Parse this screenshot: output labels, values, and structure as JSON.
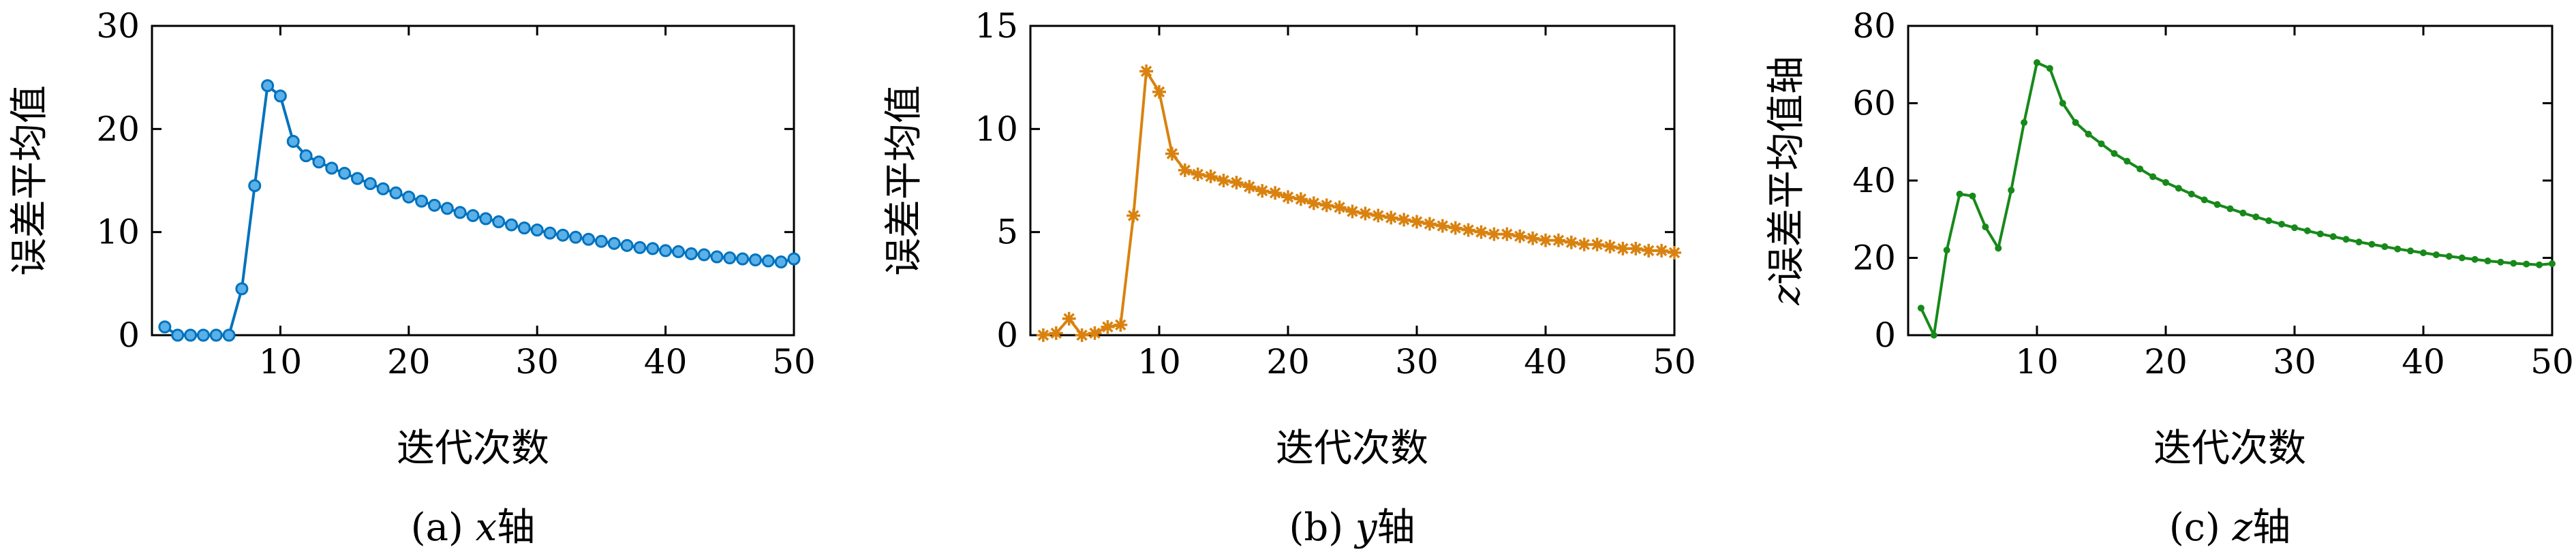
{
  "chart_data": [
    {
      "type": "line",
      "panel": "a",
      "caption": "(a) x轴",
      "caption_parts": {
        "prefix": "(a) ",
        "var": "x",
        "suffix": "轴"
      },
      "xlabel": "迭代次数",
      "ylabel": "误差平均值",
      "xlim": [
        0,
        50
      ],
      "ylim": [
        0,
        30
      ],
      "xticks": [
        10,
        20,
        30,
        40,
        50
      ],
      "yticks": [
        0,
        10,
        20,
        30
      ],
      "color": "#0072BD",
      "marker": "circle",
      "grid": false,
      "x": [
        1,
        2,
        3,
        4,
        5,
        6,
        7,
        8,
        9,
        10,
        11,
        12,
        13,
        14,
        15,
        16,
        17,
        18,
        19,
        20,
        21,
        22,
        23,
        24,
        25,
        26,
        27,
        28,
        29,
        30,
        31,
        32,
        33,
        34,
        35,
        36,
        37,
        38,
        39,
        40,
        41,
        42,
        43,
        44,
        45,
        46,
        47,
        48,
        49,
        50
      ],
      "values": [
        0.8,
        0,
        0,
        0,
        0,
        0,
        4.5,
        14.5,
        24.2,
        23.2,
        18.8,
        17.4,
        16.8,
        16.2,
        15.7,
        15.2,
        14.7,
        14.2,
        13.8,
        13.4,
        13.0,
        12.6,
        12.3,
        11.9,
        11.6,
        11.3,
        11.0,
        10.7,
        10.4,
        10.2,
        9.9,
        9.7,
        9.5,
        9.3,
        9.1,
        8.9,
        8.7,
        8.5,
        8.4,
        8.2,
        8.1,
        7.9,
        7.8,
        7.6,
        7.5,
        7.4,
        7.3,
        7.2,
        7.1,
        7.4
      ]
    },
    {
      "type": "line",
      "panel": "b",
      "caption": "(b) y轴",
      "caption_parts": {
        "prefix": "(b) ",
        "var": "y",
        "suffix": "轴"
      },
      "xlabel": "迭代次数",
      "ylabel": "误差平均值",
      "xlim": [
        0,
        50
      ],
      "ylim": [
        0,
        15
      ],
      "xticks": [
        10,
        20,
        30,
        40,
        50
      ],
      "yticks": [
        0,
        5,
        10,
        15
      ],
      "color": "#D9820F",
      "marker": "asterisk",
      "grid": false,
      "x": [
        1,
        2,
        3,
        4,
        5,
        6,
        7,
        8,
        9,
        10,
        11,
        12,
        13,
        14,
        15,
        16,
        17,
        18,
        19,
        20,
        21,
        22,
        23,
        24,
        25,
        26,
        27,
        28,
        29,
        30,
        31,
        32,
        33,
        34,
        35,
        36,
        37,
        38,
        39,
        40,
        41,
        42,
        43,
        44,
        45,
        46,
        47,
        48,
        49,
        50
      ],
      "values": [
        0,
        0.1,
        0.8,
        0,
        0.1,
        0.4,
        0.5,
        5.8,
        12.8,
        11.8,
        8.8,
        8.0,
        7.8,
        7.7,
        7.5,
        7.4,
        7.2,
        7.0,
        6.9,
        6.7,
        6.6,
        6.4,
        6.3,
        6.2,
        6.0,
        5.9,
        5.8,
        5.7,
        5.6,
        5.5,
        5.4,
        5.3,
        5.2,
        5.1,
        5.0,
        4.9,
        4.9,
        4.8,
        4.7,
        4.6,
        4.6,
        4.5,
        4.4,
        4.4,
        4.3,
        4.2,
        4.2,
        4.1,
        4.1,
        4.0
      ]
    },
    {
      "type": "line",
      "panel": "c",
      "caption": "(c) z轴",
      "caption_parts": {
        "prefix": "(c) ",
        "var": "z",
        "suffix": "轴"
      },
      "xlabel": "迭代次数",
      "ylabel": "z误差平均值轴",
      "ylabel_parts": {
        "var": "z",
        "text": "误差平均值轴"
      },
      "xlim": [
        0,
        50
      ],
      "ylim": [
        0,
        80
      ],
      "xticks": [
        10,
        20,
        30,
        40,
        50
      ],
      "yticks": [
        0,
        20,
        40,
        60,
        80
      ],
      "color": "#17891A",
      "marker": "dot",
      "grid": false,
      "x": [
        1,
        2,
        3,
        4,
        5,
        6,
        7,
        8,
        9,
        10,
        11,
        12,
        13,
        14,
        15,
        16,
        17,
        18,
        19,
        20,
        21,
        22,
        23,
        24,
        25,
        26,
        27,
        28,
        29,
        30,
        31,
        32,
        33,
        34,
        35,
        36,
        37,
        38,
        39,
        40,
        41,
        42,
        43,
        44,
        45,
        46,
        47,
        48,
        49,
        50
      ],
      "values": [
        7,
        0,
        22,
        36.5,
        36,
        28,
        22.5,
        37.5,
        55,
        70.5,
        69,
        60,
        55,
        52,
        49.5,
        47,
        45,
        43,
        41,
        39.5,
        38,
        36.5,
        35,
        33.8,
        32.7,
        31.6,
        30.6,
        29.6,
        28.7,
        27.8,
        27.0,
        26.2,
        25.5,
        24.8,
        24.1,
        23.5,
        22.9,
        22.3,
        21.8,
        21.3,
        20.8,
        20.4,
        20.0,
        19.6,
        19.2,
        18.9,
        18.6,
        18.4,
        18.2,
        18.5
      ]
    }
  ]
}
